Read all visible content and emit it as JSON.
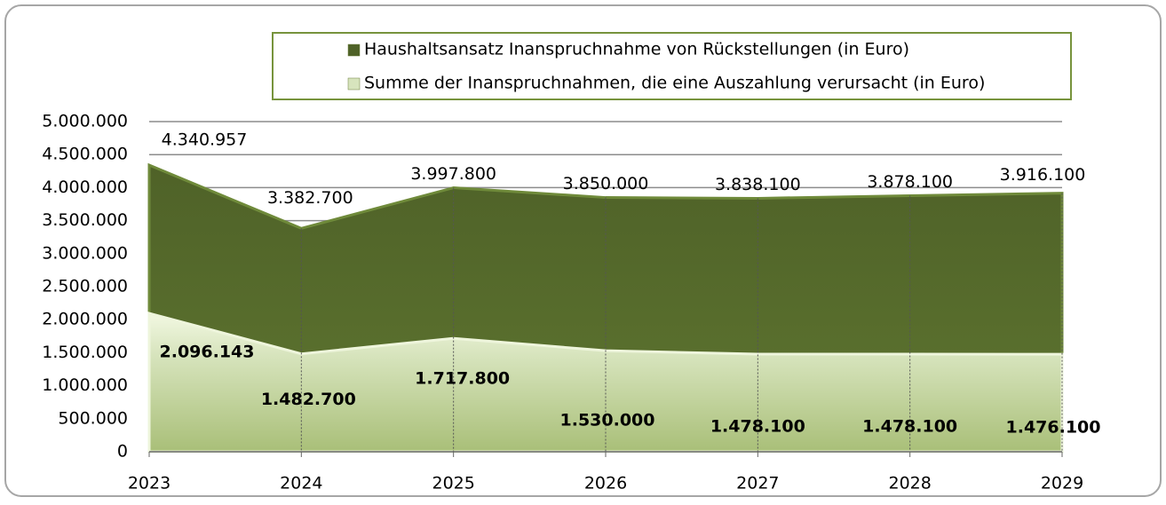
{
  "chart_data": {
    "type": "area",
    "categories": [
      "2023",
      "2024",
      "2025",
      "2026",
      "2027",
      "2028",
      "2029"
    ],
    "series": [
      {
        "name": "Haushaltsansatz Inanspruchnahme von Rückstellungen (in Euro)",
        "color": "#4f6228",
        "values": [
          4340957,
          3382700,
          3997800,
          3850000,
          3838100,
          3878100,
          3916100
        ],
        "value_labels": [
          "4.340.957",
          "3.382.700",
          "3.997.800",
          "3.850.000",
          "3.838.100",
          "3.878.100",
          "3.916.100"
        ]
      },
      {
        "name": "Summe der Inanspruchnahmen, die eine Auszahlung verursacht (in Euro)",
        "color": "#c3d69b",
        "values": [
          2096143,
          1482700,
          1717800,
          1530000,
          1478100,
          1478100,
          1476100
        ],
        "value_labels": [
          "2.096.143",
          "1.482.700",
          "1.717.800",
          "1.530.000",
          "1.478.100",
          "1.478.100",
          "1.476.100"
        ]
      }
    ],
    "ylim": [
      0,
      5000000
    ],
    "yticks": [
      0,
      {
        "value": 500000,
        "label": "500.000"
      },
      {
        "value": 1000000,
        "label": "1.000.000"
      },
      {
        "value": 1500000,
        "label": "1.500.000"
      },
      {
        "value": 2000000,
        "label": "2.000.000"
      },
      {
        "value": 2500000,
        "label": "2.500.000"
      },
      {
        "value": 3000000,
        "label": "3.000.000"
      },
      {
        "value": 3500000,
        "label": "3.500.000"
      },
      {
        "value": 4000000,
        "label": "4.000.000"
      },
      {
        "value": 4500000,
        "label": "4.500.000"
      },
      {
        "value": 5000000,
        "label": "5.000.000"
      }
    ],
    "grid": true
  }
}
